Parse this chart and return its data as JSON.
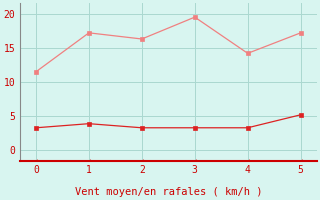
{
  "x": [
    0,
    1,
    2,
    3,
    4,
    5
  ],
  "y_rafales": [
    11.5,
    17.2,
    16.3,
    19.5,
    14.2,
    17.2
  ],
  "y_moyen": [
    3.3,
    3.9,
    3.3,
    3.3,
    3.3,
    5.2
  ],
  "line_color_rafales": "#f08080",
  "line_color_moyen": "#dd2222",
  "marker_color_rafales": "#f08080",
  "marker_color_moyen": "#dd2222",
  "background_color": "#d8f5f0",
  "grid_color": "#aad8d0",
  "spine_left_color": "#888888",
  "spine_bottom_color": "#cc0000",
  "xlabel": "Vent moyen/en rafales ( km/h )",
  "xlabel_color": "#cc0000",
  "tick_color": "#cc0000",
  "arrow_symbol": "→",
  "xlim": [
    -0.3,
    5.3
  ],
  "ylim": [
    -1.5,
    21.5
  ],
  "yticks": [
    0,
    5,
    10,
    15,
    20
  ],
  "xticks": [
    0,
    1,
    2,
    3,
    4,
    5
  ],
  "tick_fontsize": 7,
  "xlabel_fontsize": 7.5
}
